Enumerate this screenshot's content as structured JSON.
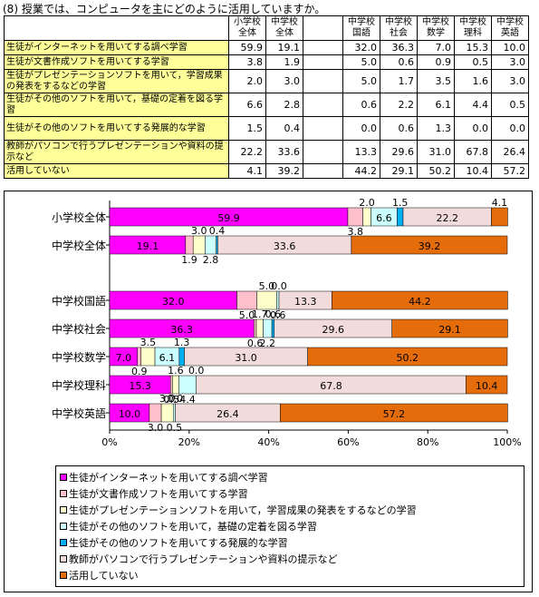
{
  "question": "(8) 授業では、コンピュータを主にどのように活用していますか。",
  "table": {
    "headers": [
      "小学校全体",
      "中学校全体",
      "",
      "中学校国語",
      "中学校社会",
      "中学校数学",
      "中学校理科",
      "中学校英語"
    ],
    "header_lines": [
      [
        "小学校",
        "全体"
      ],
      [
        "中学校",
        "全体"
      ],
      [
        "",
        ""
      ],
      [
        "中学校",
        "国語"
      ],
      [
        "中学校",
        "社会"
      ],
      [
        "中学校",
        "数学"
      ],
      [
        "中学校",
        "理科"
      ],
      [
        "中学校",
        "英語"
      ]
    ],
    "rows": [
      {
        "label": "生徒がインターネットを用いてする調べ学習",
        "values": [
          "59.9",
          "19.1",
          "",
          "32.0",
          "36.3",
          "7.0",
          "15.3",
          "10.0"
        ]
      },
      {
        "label": "生徒が文書作成ソフトを用いてする学習",
        "values": [
          "3.8",
          "1.9",
          "",
          "5.0",
          "0.6",
          "0.9",
          "0.5",
          "3.0"
        ]
      },
      {
        "label": "生徒がプレゼンテーションソフトを用いて，学習成果の発表をするなどの学習",
        "values": [
          "2.0",
          "3.0",
          "",
          "5.0",
          "1.7",
          "3.5",
          "1.6",
          "3.0"
        ]
      },
      {
        "label": "生徒がその他のソフトを用いて，基礎の定着を図る学習",
        "values": [
          "6.6",
          "2.8",
          "",
          "0.6",
          "2.2",
          "6.1",
          "4.4",
          "0.5"
        ]
      },
      {
        "label": "生徒がその他のソフトを用いてする発展的な学習",
        "values": [
          "1.5",
          "0.4",
          "",
          "0.0",
          "0.6",
          "1.3",
          "0.0",
          "0.0"
        ]
      },
      {
        "label": "教師がパソコンで行うプレゼンテーションや資料の提示など",
        "values": [
          "22.2",
          "33.6",
          "",
          "13.3",
          "29.6",
          "31.0",
          "67.8",
          "26.4"
        ]
      },
      {
        "label": "活用していない",
        "values": [
          "4.1",
          "39.2",
          "",
          "44.2",
          "29.1",
          "50.2",
          "10.4",
          "57.2"
        ]
      }
    ]
  },
  "chart_data": {
    "type": "bar",
    "orientation": "horizontal",
    "stacked": true,
    "categories": [
      "小学校全体",
      "中学校全体",
      "中学校国語",
      "中学校社会",
      "中学校数学",
      "中学校理科",
      "中学校英語"
    ],
    "series": [
      {
        "name": "生徒がインターネットを用いてする調べ学習",
        "color": "#ff00ff",
        "values": [
          59.9,
          19.1,
          32.0,
          36.3,
          7.0,
          15.3,
          10.0
        ]
      },
      {
        "name": "生徒が文書作成ソフトを用いてする学習",
        "color": "#ffc0cb",
        "values": [
          3.8,
          1.9,
          5.0,
          0.6,
          0.9,
          0.5,
          3.0
        ]
      },
      {
        "name": "生徒がプレゼンテーションソフトを用いて，学習成果の発表をするなどの学習",
        "color": "#ffffcc",
        "values": [
          2.0,
          3.0,
          5.0,
          1.7,
          3.5,
          1.6,
          3.0
        ]
      },
      {
        "name": "生徒がその他のソフトを用いて，基礎の定着を図る学習",
        "color": "#ccffff",
        "values": [
          6.6,
          2.8,
          0.6,
          2.2,
          6.1,
          4.4,
          0.5
        ]
      },
      {
        "name": "生徒がその他のソフトを用いてする発展的な学習",
        "color": "#00b0f0",
        "values": [
          1.5,
          0.4,
          0.0,
          0.6,
          1.3,
          0.0,
          0.0
        ]
      },
      {
        "name": "教師がパソコンで行うプレゼンテーションや資料の提示など",
        "color": "#f2dcdb",
        "values": [
          22.2,
          33.6,
          13.3,
          29.6,
          31.0,
          67.8,
          26.4
        ]
      },
      {
        "name": "活用していない",
        "color": "#e46c0a",
        "values": [
          4.1,
          39.2,
          44.2,
          29.1,
          50.2,
          10.4,
          57.2
        ]
      }
    ],
    "value_labels": [
      [
        "59.9",
        "19.1",
        "32.0",
        "36.3",
        "7.0",
        "15.3",
        "10.0"
      ],
      [
        "3.8",
        "1.9",
        "5.0",
        "0.6",
        "0.9",
        "0.5",
        "3.0"
      ],
      [
        "2.0",
        "3.0",
        "5.0",
        "1.7",
        "3.5",
        "1.6",
        "3.0"
      ],
      [
        "6.6",
        "2.8",
        "0.6",
        "2.2",
        "6.1",
        "4.4",
        "0.5"
      ],
      [
        "1.5",
        "0.4",
        "0.0",
        "0.6",
        "1.3",
        "0.0",
        "0.0"
      ],
      [
        "22.2",
        "33.6",
        "13.3",
        "29.6",
        "31.0",
        "67.8",
        "26.4"
      ],
      [
        "4.1",
        "39.2",
        "44.2",
        "29.1",
        "50.2",
        "10.4",
        "57.2"
      ]
    ],
    "xlim": [
      0,
      100
    ],
    "x_ticks": [
      "0%",
      "20%",
      "40%",
      "60%",
      "80%",
      "100%"
    ],
    "grid": false,
    "legend": "bottom"
  }
}
